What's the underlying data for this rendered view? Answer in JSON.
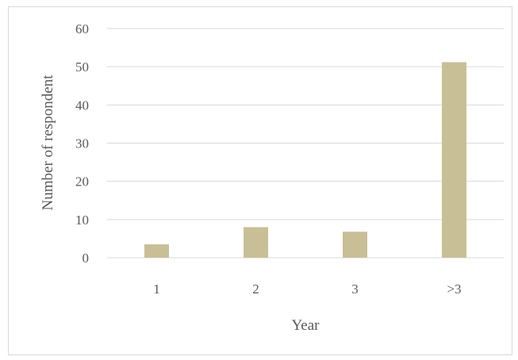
{
  "chart_data": {
    "type": "bar",
    "title": "",
    "xlabel": "Year",
    "ylabel": "Number of respondent",
    "categories": [
      "1",
      "2",
      "3",
      ">3"
    ],
    "values": [
      3.5,
      8,
      6.8,
      51.2
    ],
    "ylim": [
      0,
      60
    ],
    "yticks": [
      0,
      10,
      20,
      30,
      40,
      50,
      60
    ],
    "grid": true,
    "legend": "none",
    "bar_color": "#c8bf97",
    "grid_color": "#d9d9d9",
    "text_color": "#595959"
  }
}
